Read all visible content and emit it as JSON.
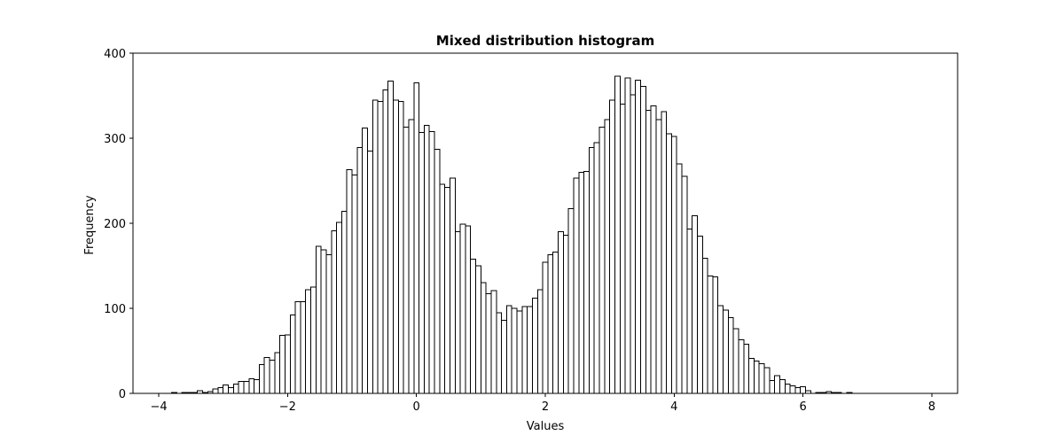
{
  "chart_data": {
    "type": "bar",
    "title": "Mixed distribution histogram",
    "xlabel": "Values",
    "ylabel": "Frequency",
    "xlim": [
      -4.4,
      8.4
    ],
    "ylim": [
      0,
      400
    ],
    "xticks": [
      -4,
      -2,
      0,
      2,
      4,
      6,
      8
    ],
    "yticks": [
      0,
      100,
      200,
      300,
      400
    ],
    "xtick_labels": [
      "−4",
      "−2",
      "0",
      "2",
      "4",
      "6",
      "8"
    ],
    "ytick_labels": [
      "0",
      "100",
      "200",
      "300",
      "400"
    ],
    "grid": false,
    "bar_fill": "#ffffff",
    "bar_edge": "#000000",
    "bin_start": -3.8,
    "bin_width": 0.08,
    "values": [
      1,
      0,
      1,
      1,
      1,
      3,
      1,
      2,
      5,
      7,
      10,
      7,
      11,
      14,
      14,
      17,
      16,
      34,
      42,
      39,
      48,
      68,
      69,
      92,
      108,
      108,
      122,
      125,
      173,
      169,
      163,
      191,
      201,
      214,
      263,
      257,
      289,
      312,
      285,
      345,
      343,
      357,
      367,
      345,
      343,
      313,
      322,
      365,
      307,
      315,
      308,
      287,
      246,
      242,
      253,
      190,
      199,
      197,
      158,
      150,
      130,
      117,
      121,
      95,
      86,
      103,
      100,
      97,
      102,
      102,
      112,
      122,
      154,
      163,
      166,
      190,
      186,
      217,
      253,
      260,
      261,
      289,
      295,
      313,
      322,
      345,
      373,
      340,
      371,
      351,
      368,
      361,
      333,
      338,
      322,
      331,
      305,
      302,
      270,
      255,
      193,
      209,
      185,
      159,
      138,
      137,
      103,
      98,
      89,
      76,
      63,
      58,
      41,
      38,
      35,
      30,
      15,
      21,
      16,
      11,
      9,
      7,
      8,
      3,
      0,
      1,
      1,
      2,
      1,
      1,
      0,
      1
    ]
  }
}
